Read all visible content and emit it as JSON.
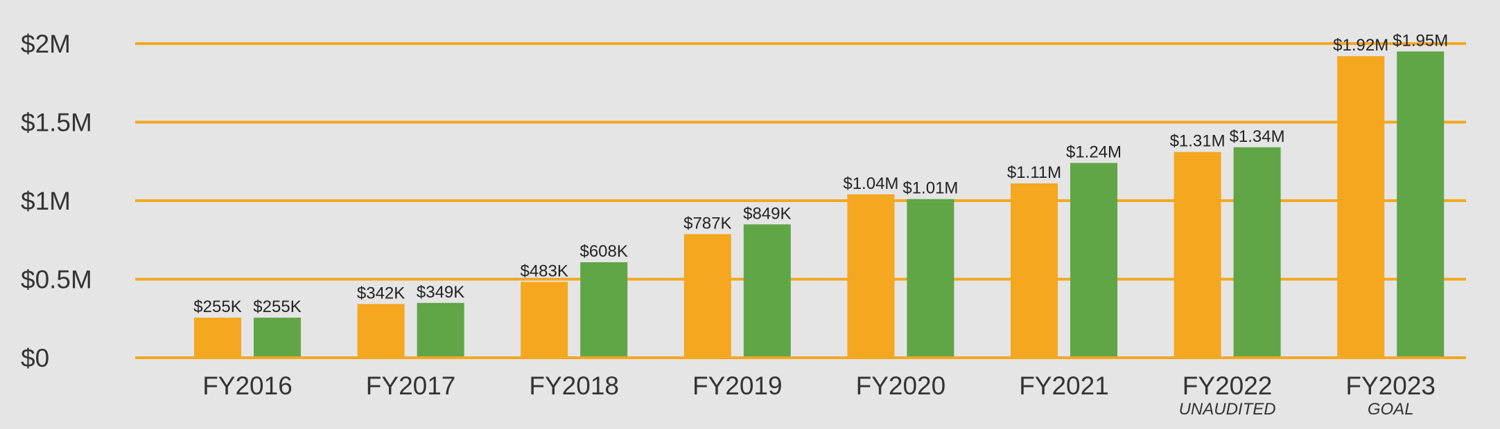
{
  "chart_data": {
    "type": "bar",
    "title": "",
    "xlabel": "",
    "ylabel": "",
    "ylim": [
      0,
      2000000
    ],
    "grid": true,
    "legend": "none",
    "y_ticks": [
      {
        "value": 0,
        "label": "$0"
      },
      {
        "value": 500000,
        "label": "$0.5M"
      },
      {
        "value": 1000000,
        "label": "$1M"
      },
      {
        "value": 1500000,
        "label": "$1.5M"
      },
      {
        "value": 2000000,
        "label": "$2M"
      }
    ],
    "categories": [
      "FY2016",
      "FY2017",
      "FY2018",
      "FY2019",
      "FY2020",
      "FY2021",
      "FY2022",
      "FY2023"
    ],
    "category_notes": [
      "",
      "",
      "",
      "",
      "",
      "",
      "UNAUDITED",
      "GOAL"
    ],
    "series": [
      {
        "color": "#f4a71f",
        "values": [
          255000,
          342000,
          483000,
          787000,
          1040000,
          1110000,
          1310000,
          1920000
        ],
        "labels": [
          "$255K",
          "$342K",
          "$483K",
          "$787K",
          "$1.04M",
          "$1.11M",
          "$1.31M",
          "$1.92M"
        ]
      },
      {
        "color": "#60a546",
        "values": [
          255000,
          349000,
          608000,
          849000,
          1010000,
          1240000,
          1340000,
          1950000
        ],
        "labels": [
          "$255K",
          "$349K",
          "$608K",
          "$849K",
          "$1.01M",
          "$1.24M",
          "$1.34M",
          "$1.95M"
        ]
      }
    ],
    "grid_color": "#f4a71f"
  }
}
